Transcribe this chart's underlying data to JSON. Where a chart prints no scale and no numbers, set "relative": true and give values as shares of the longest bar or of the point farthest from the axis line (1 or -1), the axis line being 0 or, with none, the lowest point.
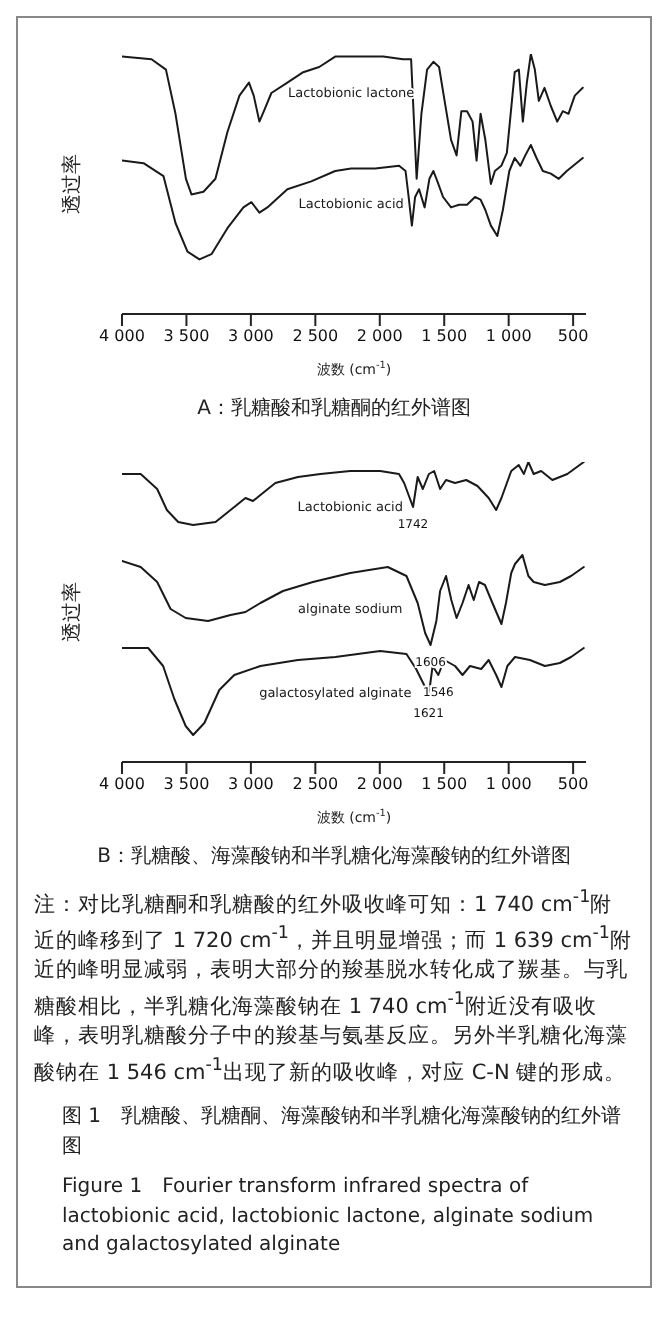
{
  "chart_data": [
    {
      "type": "line",
      "title": "A：乳糖酸和乳糖酮的红外谱图",
      "xlabel": "波数 (cm$^{-1}$)",
      "ylabel": "透过率",
      "relative": true,
      "legend": false,
      "grid": false,
      "marker": "none",
      "line_style": "solid",
      "xlim": [
        4000,
        400
      ],
      "xticks": [
        {
          "value": 4000,
          "label": "4 000"
        },
        {
          "value": 3500,
          "label": "3 500"
        },
        {
          "value": 3000,
          "label": "3 000"
        },
        {
          "value": 2500,
          "label": "2 500"
        },
        {
          "value": 2000,
          "label": "2 000"
        },
        {
          "value": 1500,
          "label": "1 500"
        },
        {
          "value": 1000,
          "label": "1 000"
        },
        500
      ],
      "series": [
        {
          "name": "Lactobionic lactone",
          "color": "#1a1a1a",
          "x": [
            4000,
            3771,
            3659,
            3585,
            3504,
            3461,
            3368,
            3275,
            3182,
            3089,
            3015,
            2978,
            2934,
            2891,
            2841,
            2717,
            2594,
            2470,
            2346,
            2222,
            1974,
            1819,
            1757,
            1714,
            1677,
            1633,
            1584,
            1540,
            1497,
            1447,
            1404,
            1367,
            1323,
            1280,
            1249,
            1218,
            1181,
            1138,
            1107,
            1057,
            1014,
            953,
            921,
            890,
            859,
            828,
            797,
            766,
            722,
            673,
            623,
            580,
            536,
            487,
            425
          ],
          "values": [
            0.99,
            0.98,
            0.94,
            0.77,
            0.52,
            0.46,
            0.47,
            0.52,
            0.7,
            0.84,
            0.89,
            0.84,
            0.74,
            0.79,
            0.85,
            0.89,
            0.93,
            0.95,
            0.99,
            0.99,
            0.99,
            0.98,
            0.98,
            0.52,
            0.77,
            0.94,
            0.97,
            0.95,
            0.82,
            0.67,
            0.61,
            0.78,
            0.78,
            0.74,
            0.59,
            0.77,
            0.67,
            0.5,
            0.55,
            0.57,
            0.62,
            0.93,
            0.94,
            0.74,
            0.89,
            1,
            0.94,
            0.82,
            0.87,
            0.8,
            0.74,
            0.78,
            0.77,
            0.84,
            0.87
          ]
        },
        {
          "name": "Lactobionic acid",
          "color": "#1a1a1a",
          "x": [
            4000,
            3833,
            3678,
            3585,
            3492,
            3399,
            3306,
            3182,
            3058,
            2996,
            2934,
            2872,
            2717,
            2532,
            2346,
            2222,
            2036,
            1850,
            1800,
            1776,
            1751,
            1726,
            1695,
            1652,
            1615,
            1584,
            1553,
            1509,
            1447,
            1385,
            1323,
            1261,
            1218,
            1181,
            1138,
            1088,
            1045,
            995,
            953,
            909,
            871,
            828,
            784,
            735,
            673,
            611,
            549,
            425
          ],
          "values": [
            0.59,
            0.58,
            0.53,
            0.35,
            0.24,
            0.21,
            0.23,
            0.33,
            0.41,
            0.43,
            0.39,
            0.41,
            0.48,
            0.51,
            0.55,
            0.56,
            0.56,
            0.57,
            0.55,
            0.45,
            0.34,
            0.45,
            0.48,
            0.41,
            0.52,
            0.55,
            0.51,
            0.45,
            0.41,
            0.42,
            0.42,
            0.45,
            0.44,
            0.4,
            0.34,
            0.3,
            0.4,
            0.55,
            0.6,
            0.57,
            0.61,
            0.65,
            0.6,
            0.55,
            0.54,
            0.52,
            0.55,
            0.6
          ]
        }
      ]
    },
    {
      "type": "line",
      "title": "B：乳糖酸、海藻酸钠和半乳糖化海藻酸钠的红外谱图",
      "xlabel": "波数 (cm$^{-1}$)",
      "ylabel": "透过率",
      "relative": true,
      "legend": false,
      "grid": false,
      "marker": "none",
      "line_style": "solid",
      "xlim": [
        4000,
        400
      ],
      "xticks": [
        {
          "value": 4000,
          "label": "4 000"
        },
        {
          "value": 3500,
          "label": "3 500"
        },
        {
          "value": 3000,
          "label": "3 000"
        },
        {
          "value": 2500,
          "label": "2 500"
        },
        {
          "value": 2000,
          "label": "2 000"
        },
        {
          "value": 1500,
          "label": "1 500"
        },
        {
          "value": 1000,
          "label": "1 000"
        },
        500
      ],
      "annotations": [
        {
          "text": "1742",
          "x": 1742,
          "y": 0.85
        },
        {
          "text": "1606",
          "x": 1606,
          "y": 0.39
        },
        {
          "text": "1621",
          "x": 1621,
          "y": 0.22
        },
        {
          "text": "1546",
          "x": 1546,
          "y": 0.29
        }
      ],
      "series": [
        {
          "name": "Lactobionic acid",
          "color": "#1a1a1a",
          "x": [
            4000,
            3855,
            3727,
            3652,
            3564,
            3448,
            3274,
            3158,
            3042,
            2984,
            2926,
            2810,
            2635,
            2461,
            2229,
            1997,
            1851,
            1811,
            1742,
            1706,
            1666,
            1619,
            1578,
            1532,
            1486,
            1416,
            1329,
            1242,
            1155,
            1097,
            1056,
            980,
            922,
            882,
            847,
            806,
            748,
            661,
            545,
            417
          ],
          "values": [
            0.96,
            0.96,
            0.91,
            0.84,
            0.8,
            0.79,
            0.8,
            0.84,
            0.88,
            0.87,
            0.89,
            0.93,
            0.95,
            0.96,
            0.97,
            0.97,
            0.96,
            0.93,
            0.85,
            0.95,
            0.91,
            0.96,
            0.97,
            0.91,
            0.94,
            0.93,
            0.94,
            0.92,
            0.88,
            0.84,
            0.88,
            0.97,
            0.99,
            0.96,
            1,
            0.96,
            0.97,
            0.94,
            0.96,
            1
          ]
        },
        {
          "name": "alginate sodium",
          "color": "#1a1a1a",
          "x": [
            4000,
            3855,
            3727,
            3623,
            3506,
            3332,
            3158,
            3042,
            2926,
            2751,
            2519,
            2229,
            1938,
            1793,
            1706,
            1648,
            1606,
            1561,
            1532,
            1486,
            1445,
            1404,
            1358,
            1311,
            1271,
            1230,
            1184,
            1126,
            1056,
            1021,
            980,
            951,
            893,
            847,
            806,
            719,
            603,
            516,
            417
          ],
          "values": [
            0.67,
            0.65,
            0.6,
            0.51,
            0.48,
            0.47,
            0.49,
            0.5,
            0.53,
            0.57,
            0.6,
            0.63,
            0.65,
            0.62,
            0.53,
            0.43,
            0.39,
            0.47,
            0.57,
            0.62,
            0.54,
            0.48,
            0.53,
            0.59,
            0.54,
            0.6,
            0.59,
            0.53,
            0.46,
            0.53,
            0.63,
            0.66,
            0.69,
            0.62,
            0.6,
            0.59,
            0.6,
            0.62,
            0.65
          ]
        },
        {
          "name": "galactosylated alginate",
          "color": "#1a1a1a",
          "x": [
            4000,
            3797,
            3681,
            3594,
            3506,
            3448,
            3361,
            3245,
            3129,
            2926,
            2635,
            2345,
            1997,
            1793,
            1718,
            1660,
            1621,
            1590,
            1546,
            1500,
            1416,
            1358,
            1300,
            1213,
            1155,
            1097,
            1056,
            1010,
            951,
            835,
            719,
            603,
            516,
            417
          ],
          "values": [
            0.38,
            0.38,
            0.32,
            0.21,
            0.12,
            0.09,
            0.13,
            0.24,
            0.29,
            0.32,
            0.34,
            0.35,
            0.37,
            0.36,
            0.31,
            0.26,
            0.22,
            0.32,
            0.29,
            0.34,
            0.32,
            0.29,
            0.32,
            0.31,
            0.34,
            0.29,
            0.25,
            0.32,
            0.35,
            0.34,
            0.32,
            0.33,
            0.35,
            0.38
          ]
        }
      ]
    },
    {
      "type": "other",
      "annotations": [
        "注：对比乳糖酮和乳糖酸的红外吸收峰可知：1 740 cm$^{-1}$附近的峰移到了 1 720 cm$^{-1}$，并且明显增强；而 1 639 cm$^{-1}$附近的峰明显减弱，表明大部分的羧基脱水转化成了羰基。与乳糖酸相比，半乳糖化海藻酸钠在 1 740 cm$^{-1}$附近没有吸收峰，表明乳糖酸分子中的羧基与氨基反应。另外半乳糖化海藻酸钠在 1 546 cm$^{-1}$出现了新的吸收峰，对应 C-N 键的形成。",
        "图 1　乳糖酸、乳糖酮、海藻酸钠和半乳糖化海藻酸钠的红外谱图",
        "Figure 1　Fourier transform infrared spectra of lactobionic acid, lactobionic lactone, alginate sodium and galactosylated alginate"
      ]
    }
  ]
}
